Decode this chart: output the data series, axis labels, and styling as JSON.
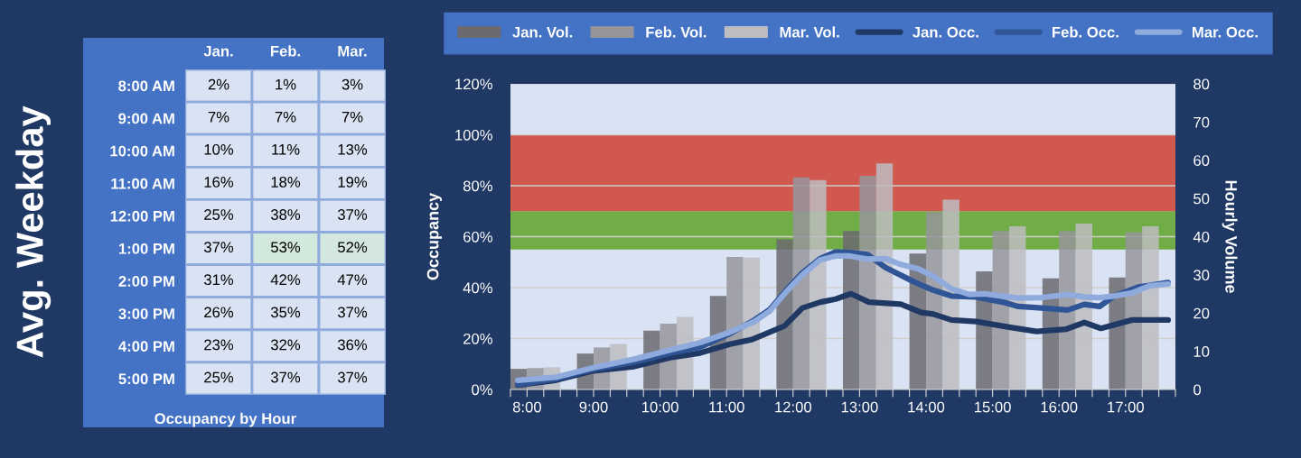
{
  "chart_data": [
    {
      "type": "heatmap",
      "ylabel": "Avg. Weekday",
      "xlabel": "Occupancy by Hour",
      "categories": [
        "Jan.",
        "Feb.",
        "Mar."
      ],
      "y_categories": [
        "8:00 AM",
        "9:00 AM",
        "10:00 AM",
        "11:00 AM",
        "12:00 PM",
        "1:00 PM",
        "2:00 PM",
        "3:00 PM",
        "4:00 PM",
        "5:00 PM"
      ],
      "cells": [
        [
          2,
          1,
          3
        ],
        [
          7,
          7,
          7
        ],
        [
          10,
          11,
          13
        ],
        [
          16,
          18,
          19
        ],
        [
          25,
          38,
          37
        ],
        [
          37,
          53,
          52
        ],
        [
          31,
          42,
          47
        ],
        [
          26,
          35,
          37
        ],
        [
          23,
          32,
          36
        ],
        [
          25,
          37,
          37
        ]
      ],
      "cell_labels": [
        [
          "2%",
          "1%",
          "3%"
        ],
        [
          "7%",
          "7%",
          "7%"
        ],
        [
          "10%",
          "11%",
          "13%"
        ],
        [
          "16%",
          "18%",
          "19%"
        ],
        [
          "25%",
          "38%",
          "37%"
        ],
        [
          "37%",
          "53%",
          "52%"
        ],
        [
          "31%",
          "42%",
          "47%"
        ],
        [
          "26%",
          "35%",
          "37%"
        ],
        [
          "23%",
          "32%",
          "36%"
        ],
        [
          "25%",
          "37%",
          "37%"
        ]
      ],
      "color": "#dae3f3"
    },
    {
      "type": "bar",
      "ylabel": "Occupancy",
      "y2label": "Hourly Volume",
      "xlim": [
        7.75,
        17.75
      ],
      "xticks": [
        {
          "value": 7.75,
          "label": null
        },
        {
          "value": 8,
          "label": "8:00"
        },
        {
          "value": 8.25,
          "label": null
        },
        {
          "value": 8.5,
          "label": null
        },
        {
          "value": 8.75,
          "label": null
        },
        {
          "value": 9,
          "label": "9:00"
        },
        {
          "value": 9.25,
          "label": null
        },
        {
          "value": 9.5,
          "label": null
        },
        {
          "value": 9.75,
          "label": null
        },
        {
          "value": 10,
          "label": "10:00"
        },
        {
          "value": 10.25,
          "label": null
        },
        {
          "value": 10.5,
          "label": null
        },
        {
          "value": 10.75,
          "label": null
        },
        {
          "value": 11,
          "label": "11:00"
        },
        {
          "value": 11.25,
          "label": null
        },
        {
          "value": 11.5,
          "label": null
        },
        {
          "value": 11.75,
          "label": null
        },
        {
          "value": 12,
          "label": "12:00"
        },
        {
          "value": 12.25,
          "label": null
        },
        {
          "value": 12.5,
          "label": null
        },
        {
          "value": 12.75,
          "label": null
        },
        {
          "value": 13,
          "label": "13:00"
        },
        {
          "value": 13.25,
          "label": null
        },
        {
          "value": 13.5,
          "label": null
        },
        {
          "value": 13.75,
          "label": null
        },
        {
          "value": 14,
          "label": "14:00"
        },
        {
          "value": 14.25,
          "label": null
        },
        {
          "value": 14.5,
          "label": null
        },
        {
          "value": 14.75,
          "label": null
        },
        {
          "value": 15,
          "label": "15:00"
        },
        {
          "value": 15.25,
          "label": null
        },
        {
          "value": 15.5,
          "label": null
        },
        {
          "value": 15.75,
          "label": null
        },
        {
          "value": 16,
          "label": "16:00"
        },
        {
          "value": 16.25,
          "label": null
        },
        {
          "value": 16.5,
          "label": null
        },
        {
          "value": 16.75,
          "label": null
        },
        {
          "value": 17,
          "label": "17:00"
        },
        {
          "value": 17.25,
          "label": null
        },
        {
          "value": 17.5,
          "label": null
        },
        {
          "value": 17.75,
          "label": null
        }
      ],
      "ylim": [
        0,
        120
      ],
      "yticks": [
        {
          "value": 0,
          "label": "0%"
        },
        {
          "value": 20,
          "label": "20%"
        },
        {
          "value": 40,
          "label": "40%"
        },
        {
          "value": 60,
          "label": "60%"
        },
        {
          "value": 80,
          "label": "80%"
        },
        {
          "value": 100,
          "label": "100%"
        },
        {
          "value": 120,
          "label": "120%"
        }
      ],
      "y2lim": [
        0,
        80
      ],
      "y2ticks": [
        0,
        10,
        20,
        30,
        40,
        50,
        60,
        70,
        80
      ],
      "grid": "y",
      "legend": "top",
      "bands": [
        {
          "axis": "y",
          "from": 55,
          "to": 70,
          "color": "#70ad47"
        },
        {
          "axis": "y",
          "from": 70,
          "to": 100,
          "color": "#d0584f"
        }
      ],
      "series": [
        {
          "name": "Jan. Vol.",
          "type": "bar",
          "axis": "y2",
          "color": "#6b6a70",
          "x": [
            7.875,
            8.875,
            9.875,
            10.875,
            11.875,
            12.875,
            13.875,
            14.875,
            15.875,
            16.875
          ],
          "values": [
            5.4,
            9.4,
            15.4,
            24.5,
            39.3,
            41.5,
            35.6,
            30.9,
            29.1,
            29.3
          ]
        },
        {
          "name": "Feb. Vol.",
          "type": "bar",
          "axis": "y2",
          "color": "#96959b",
          "x": [
            8.125,
            9.125,
            10.125,
            11.125,
            12.125,
            13.125,
            14.125,
            15.125,
            16.125,
            17.125
          ],
          "values": [
            5.6,
            11.0,
            17.2,
            34.7,
            55.5,
            55.9,
            46.4,
            41.5,
            41.5,
            41.2
          ]
        },
        {
          "name": "Mar. Vol.",
          "type": "bar",
          "axis": "y2",
          "color": "#bdbcc1",
          "x": [
            8.375,
            9.375,
            10.375,
            11.375,
            12.375,
            13.375,
            14.375,
            15.375,
            16.375,
            17.375
          ],
          "values": [
            5.8,
            11.9,
            19.0,
            34.5,
            54.8,
            59.2,
            49.7,
            42.7,
            43.4,
            42.7
          ]
        },
        {
          "name": "Jan. Occ.",
          "type": "line",
          "axis": "y",
          "color": "#203864",
          "x": [
            7.86,
            8.43,
            8.97,
            9.61,
            10.15,
            10.6,
            11.05,
            11.38,
            11.87,
            12.14,
            12.41,
            12.64,
            12.87,
            13.14,
            13.62,
            13.93,
            14.11,
            14.38,
            14.75,
            15.29,
            15.66,
            16.11,
            16.38,
            16.63,
            17.1,
            17.64
          ],
          "values": [
            1.7,
            3.6,
            7.2,
            9.0,
            12.5,
            14.3,
            17.8,
            19.6,
            24.9,
            32.0,
            34.3,
            35.5,
            37.6,
            34.3,
            33.5,
            30.2,
            29.6,
            27.3,
            26.7,
            24.3,
            22.8,
            23.7,
            26.3,
            24.0,
            27.3,
            27.3
          ]
        },
        {
          "name": "Feb. Occ.",
          "type": "line",
          "axis": "y",
          "color": "#2f5597",
          "x": [
            7.86,
            8.43,
            8.97,
            9.61,
            10.15,
            10.6,
            11.05,
            11.42,
            11.65,
            11.92,
            12.14,
            12.41,
            12.64,
            12.85,
            13.12,
            13.39,
            13.84,
            14.11,
            14.38,
            14.75,
            15.15,
            15.39,
            15.74,
            16.13,
            16.38,
            16.61,
            16.83,
            17.19,
            17.64
          ],
          "values": [
            1.9,
            4.2,
            7.8,
            10.7,
            14.3,
            16.6,
            21.9,
            27.3,
            31.4,
            39.6,
            45.8,
            51.4,
            54.0,
            53.8,
            53.0,
            47.9,
            42.0,
            39.0,
            36.7,
            36.3,
            34.3,
            32.6,
            32.0,
            31.2,
            33.4,
            32.6,
            36.7,
            40.2,
            42.0
          ]
        },
        {
          "name": "Mar. Occ.",
          "type": "line",
          "axis": "y",
          "color": "#8faadc",
          "x": [
            7.86,
            8.43,
            8.97,
            9.61,
            10.15,
            10.6,
            11.05,
            11.42,
            11.65,
            11.92,
            12.14,
            12.41,
            12.64,
            12.85,
            13.12,
            13.39,
            13.62,
            13.89,
            14.11,
            14.38,
            14.65,
            14.88,
            15.15,
            15.39,
            15.74,
            16.13,
            16.38,
            16.61,
            16.83,
            17.1,
            17.37,
            17.64
          ],
          "values": [
            3.6,
            4.8,
            8.4,
            11.9,
            15.5,
            18.4,
            22.5,
            26.7,
            30.8,
            39.0,
            45.0,
            50.9,
            52.4,
            52.4,
            51.2,
            51.4,
            49.1,
            47.3,
            44.4,
            39.6,
            37.3,
            37.6,
            36.7,
            35.9,
            36.1,
            37.3,
            36.3,
            36.1,
            36.7,
            37.9,
            40.8,
            41.4
          ]
        }
      ]
    }
  ]
}
